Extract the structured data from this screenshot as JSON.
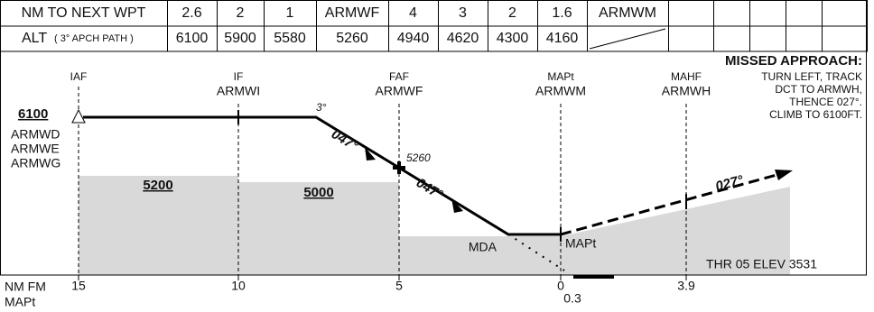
{
  "table": {
    "row1": [
      "NM TO NEXT WPT",
      "2.6",
      "2",
      "1",
      "ARMWF",
      "4",
      "3",
      "2",
      "1.6",
      "ARMWM"
    ],
    "row2_label": "ALT",
    "row2_note": "( 3° APCH PATH )",
    "row2": [
      "6100",
      "5900",
      "5580",
      "5260",
      "4940",
      "4620",
      "4300",
      "4160"
    ]
  },
  "missed_approach": {
    "title": "MISSED APPROACH:",
    "lines": [
      "TURN LEFT, TRACK",
      "DCT TO ARMWH,",
      "THENCE 027°.",
      "CLIMB TO 6100FT."
    ]
  },
  "fixes": [
    {
      "role": "IAF"
    },
    {
      "role": "IF",
      "name": "ARMWI"
    },
    {
      "role": "FAF",
      "name": "ARMWF"
    },
    {
      "role": "MAPt",
      "name": "ARMWM"
    },
    {
      "role": "MAHF",
      "name": "ARMWH"
    }
  ],
  "iaf_alt": "6100",
  "iaf_names": [
    "ARMWD",
    "ARMWE",
    "ARMWG"
  ],
  "msa": [
    "5200",
    "5000"
  ],
  "angle": "3°",
  "track_in": [
    "047°",
    "047°"
  ],
  "faf_alt": "5260",
  "mda": "MDA",
  "mapt": "MAPt",
  "track_out": "027°",
  "thr": "THR 05 ELEV 3531",
  "distance_label": [
    "NM FM",
    "MAPt"
  ],
  "distances": [
    "15",
    "10",
    "5",
    "0",
    "0.3",
    "3.9"
  ]
}
